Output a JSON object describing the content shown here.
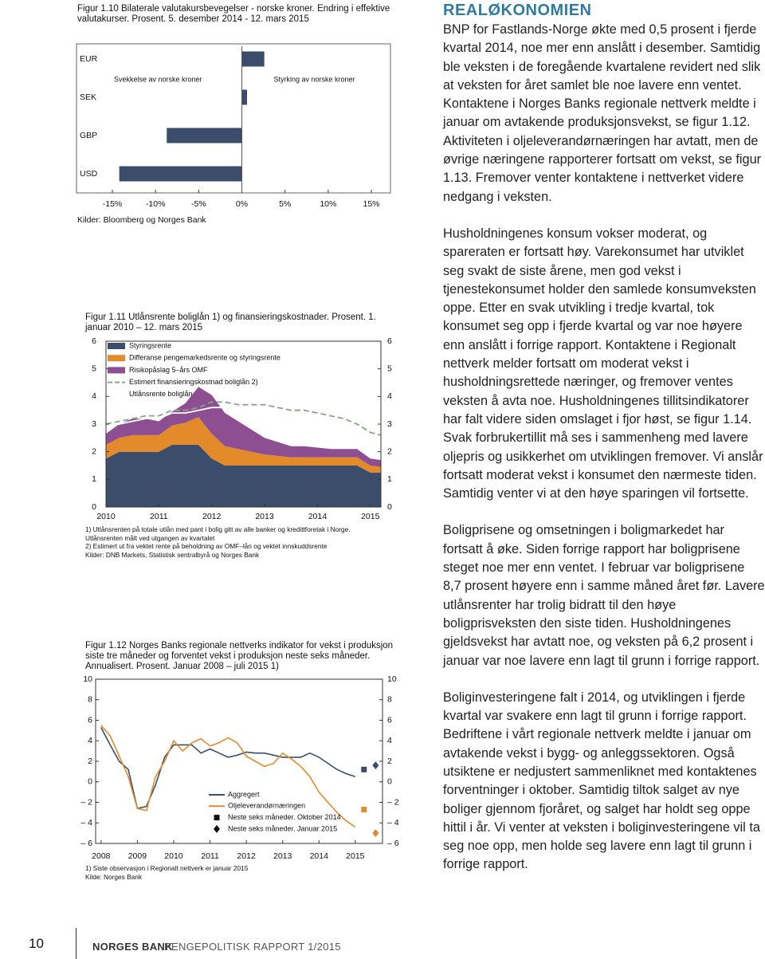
{
  "chart_data": [
    {
      "type": "bar",
      "orientation": "horizontal",
      "title": "Figur 1.10 Bilaterale valutakursbevegelser - norske kroner. Endring i effektive valutakurser. Prosent. 5. desember 2014 - 12. mars 2015",
      "categories": [
        "EUR",
        "SEK",
        "GBP",
        "USD"
      ],
      "values": [
        2.6,
        0.6,
        -8.7,
        -14.2
      ],
      "color": "#3b4d6b",
      "xlim": [
        -15,
        15
      ],
      "xticks": [
        {
          "value": -15,
          "label": "-15%"
        },
        {
          "value": -10,
          "label": "-10%"
        },
        {
          "value": -5,
          "label": "-5%"
        },
        {
          "value": 0,
          "label": "0%"
        },
        {
          "value": 5,
          "label": "5%"
        },
        {
          "value": 10,
          "label": "10%"
        },
        {
          "value": 15,
          "label": "15%"
        }
      ],
      "annotations": [
        "Svekkelse av norske kroner",
        "Styrking av norske kroner"
      ],
      "source": "Kilder: Bloomberg og Norges Bank"
    },
    {
      "type": "area",
      "stacked": true,
      "title": "Figur 1.11 Utlånsrente boliglån 1) og finansieringskostnader. Prosent. 1. januar 2010 – 12. mars 2015",
      "x": [
        2010,
        2010.25,
        2010.5,
        2010.75,
        2011,
        2011.25,
        2011.5,
        2011.75,
        2012,
        2012.25,
        2012.5,
        2012.75,
        2013,
        2013.25,
        2013.5,
        2013.75,
        2014,
        2014.25,
        2014.5,
        2014.75,
        2015,
        2015.2
      ],
      "series": [
        {
          "name": "Styringsrente",
          "color": "#3b4d6b",
          "kind": "area",
          "values": [
            1.75,
            2.0,
            2.0,
            2.0,
            2.0,
            2.25,
            2.25,
            2.25,
            1.75,
            1.5,
            1.5,
            1.5,
            1.5,
            1.5,
            1.5,
            1.5,
            1.5,
            1.5,
            1.5,
            1.5,
            1.25,
            1.25
          ]
        },
        {
          "name": "Differanse pengemarkedsrente og styringsrente",
          "color": "#e38b2a",
          "kind": "area",
          "values": [
            0.5,
            0.5,
            0.6,
            0.6,
            0.6,
            0.7,
            0.8,
            1.0,
            0.9,
            0.7,
            0.6,
            0.5,
            0.4,
            0.35,
            0.3,
            0.3,
            0.3,
            0.3,
            0.3,
            0.3,
            0.25,
            0.2
          ]
        },
        {
          "name": "Risikopåslag 5–års OMF",
          "color": "#8e4f92",
          "kind": "area",
          "values": [
            0.4,
            0.5,
            0.6,
            0.6,
            0.5,
            0.5,
            0.7,
            1.1,
            1.4,
            1.2,
            1.0,
            0.8,
            0.6,
            0.5,
            0.4,
            0.4,
            0.35,
            0.3,
            0.3,
            0.3,
            0.25,
            0.25
          ]
        },
        {
          "name": "Estimert finansieringskostnad boliglån 2)",
          "color": "#8aa38a",
          "kind": "line",
          "dashed": true,
          "values": [
            3.0,
            3.1,
            3.2,
            3.3,
            3.3,
            3.5,
            3.5,
            3.6,
            3.8,
            3.8,
            3.7,
            3.7,
            3.7,
            3.6,
            3.5,
            3.5,
            3.4,
            3.3,
            3.2,
            3.0,
            2.7,
            2.6
          ]
        },
        {
          "name": "Utlånsrente boliglån",
          "color": "#ffffff",
          "kind": "line",
          "values": [
            2.9,
            3.0,
            3.1,
            3.2,
            3.2,
            3.4,
            3.4,
            3.5,
            3.6,
            3.6,
            3.5,
            3.4,
            3.3,
            3.2,
            3.1,
            3.1,
            3.0,
            2.9,
            2.8,
            2.7,
            2.4,
            2.3
          ]
        }
      ],
      "xlim": [
        2010,
        2015.2
      ],
      "xticks": [
        2010,
        2011,
        2012,
        2013,
        2014,
        2015
      ],
      "ylim": [
        0,
        6
      ],
      "yticks": [
        0,
        1,
        2,
        3,
        4,
        5,
        6
      ],
      "y2lim": [
        0,
        6
      ],
      "y2ticks": [
        0,
        1,
        2,
        3,
        4,
        5,
        6
      ],
      "notes": [
        "1) Utlånsrenten på totale utlån med pant i bolig gitt av alle banker og kredittforetak i Norge. Utlånsrenten målt ved utgangen av kvartalet",
        "2) Estimert ut fra vektet rente på beholdning av OMF–lån og vektet innskuddsrente",
        "Kilder: DNB Markets, Statistisk sentralbyrå og Norges Bank"
      ]
    },
    {
      "type": "line",
      "title": "Figur 1.12 Norges Banks regionale nettverks indikator for vekst i produksjon siste tre måneder og forventet vekst i produksjon neste seks måneder. Annualisert. Prosent. Januar 2008 – juli 2015 1)",
      "x": [
        2008,
        2008.25,
        2008.5,
        2008.75,
        2009,
        2009.25,
        2009.5,
        2009.75,
        2010,
        2010.25,
        2010.5,
        2010.75,
        2011,
        2011.25,
        2011.5,
        2011.75,
        2012,
        2012.25,
        2012.5,
        2012.75,
        2013,
        2013.25,
        2013.5,
        2013.75,
        2014,
        2014.25,
        2014.5,
        2014.75,
        2015
      ],
      "series": [
        {
          "name": "Aggregert",
          "color": "#3b4d6b",
          "kind": "line",
          "values": [
            5.3,
            3.6,
            2.0,
            1.2,
            -2.6,
            -2.4,
            -0.3,
            2.4,
            3.6,
            3.6,
            3.6,
            2.8,
            3.2,
            2.8,
            2.4,
            2.6,
            2.9,
            2.8,
            2.8,
            2.6,
            2.4,
            2.4,
            2.4,
            2.8,
            2.4,
            1.8,
            1.2,
            0.8,
            0.5
          ]
        },
        {
          "name": "Oljeleverandørnæringen",
          "color": "#e38b2a",
          "kind": "line",
          "values": [
            5.5,
            4.5,
            2.5,
            0.5,
            -2.6,
            -2.8,
            0.5,
            2.0,
            4.0,
            3.0,
            3.8,
            4.2,
            3.5,
            3.8,
            4.3,
            3.8,
            2.5,
            2.0,
            1.5,
            1.8,
            2.8,
            2.2,
            1.5,
            0.5,
            -1.0,
            -2.0,
            -3.0,
            -3.8,
            -4.4
          ]
        },
        {
          "name": "Neste seks måneder. Oktober 2014",
          "kind": "scatter",
          "marker": "square",
          "colors": [
            "#3b4d6b",
            "#e38b2a"
          ],
          "x": [
            2015.24,
            2015.24
          ],
          "values": [
            1.2,
            -2.7
          ]
        },
        {
          "name": "Neste seks måneder. Januar 2015",
          "kind": "scatter",
          "marker": "diamond",
          "colors": [
            "#3b4d6b",
            "#e38b2a"
          ],
          "x": [
            2015.56,
            2015.56
          ],
          "values": [
            1.6,
            -5.0
          ]
        }
      ],
      "xlim": [
        2007.85,
        2015.75
      ],
      "xticks": [
        2008,
        2009,
        2010,
        2011,
        2012,
        2013,
        2014,
        2015
      ],
      "ylim": [
        -6,
        10
      ],
      "yticks": [
        10,
        8,
        6,
        4,
        2,
        0,
        {
          "value": -2,
          "label": "– 2"
        },
        {
          "value": -4,
          "label": "– 4"
        },
        {
          "value": -6,
          "label": "– 6"
        }
      ],
      "y2lim": [
        -6,
        10
      ],
      "y2ticks": [
        10,
        8,
        6,
        4,
        2,
        0,
        {
          "value": -2,
          "label": "– 2"
        },
        {
          "value": -4,
          "label": "– 4"
        },
        {
          "value": -6,
          "label": "– 6"
        }
      ],
      "notes": [
        "1) Siste observasjon i Regionalt nettverk er januar 2015",
        "Kilde: Norges Bank"
      ]
    }
  ],
  "article": {
    "heading": "REALØKONOMIEN",
    "paragraphs": [
      "BNP for Fastlands-Norge økte med 0,5 prosent i fjerde kvartal 2014, noe mer enn anslått i desember. Samtidig ble veksten i de foregående kvartalene revidert ned slik at veksten for året samlet ble noe lavere enn ventet. Kontaktene i Norges Banks regionale nettverk meldte i januar om avtakende produksjonsvekst, se figur 1.12. Aktiviteten i oljeleverandørnæringen har avtatt, men de øvrige næringene rapporterer fortsatt om vekst, se figur 1.13. Fremover venter kontaktene i nettverket videre nedgang i veksten.",
      "Husholdningenes konsum vokser moderat, og spareraten er fortsatt høy. Varekonsumet har utviklet seg svakt de siste årene, men god vekst i tjenestekonsumet holder den samlede konsumveksten oppe. Etter en svak utvikling i tredje kvartal, tok konsumet seg opp i fjerde kvartal og var noe høyere enn anslått i forrige rapport. Kontaktene i Regionalt nettverk melder fortsatt om moderat vekst i husholdningsrettede næringer, og fremover ventes veksten å avta noe. Husholdningenes tillitsindikatorer har falt videre siden omslaget i fjor høst, se figur 1.14. Svak forbrukertillit må ses i sammenheng med lavere oljepris og usikkerhet om utviklingen fremover. Vi anslår fortsatt moderat vekst i konsumet den nærmeste tiden. Samtidig venter vi at den høye sparingen vil fortsette.",
      "Boligprisene og omsetningen i boligmarkedet har fortsatt å øke. Siden forrige rapport har boligprisene steget noe mer enn ventet. I februar var boligprisene 8,7 prosent høyere enn i samme måned året før. Lavere utlånsrenter har trolig bidratt til den høye boligprisveksten den siste tiden. Husholdningenes gjeldsvekst har avtatt noe, og veksten på 6,2 prosent i januar var noe lavere enn lagt til grunn i forrige rapport.",
      "Boliginvesteringene falt i 2014, og utviklingen i fjerde kvartal var svakere enn lagt til grunn i forrige rapport. Bedriftene i vårt regionale nettverk meldte i januar om avtakende vekst i bygg- og anleggssektoren. Også utsiktene er nedjustert sammenliknet med kontaktenes forventninger i oktober. Samtidig tiltok salget av nye boliger gjennom fjoråret, og salget har holdt seg oppe hittil i år. Vi venter at veksten i boliginvesteringene vil ta seg noe opp, men holde seg lavere enn lagt til grunn i forrige rapport."
    ]
  },
  "footer": {
    "page": "10",
    "publisher": "NORGES BANK",
    "report": "PENGEPOLITISK RAPPORT 1/2015"
  }
}
